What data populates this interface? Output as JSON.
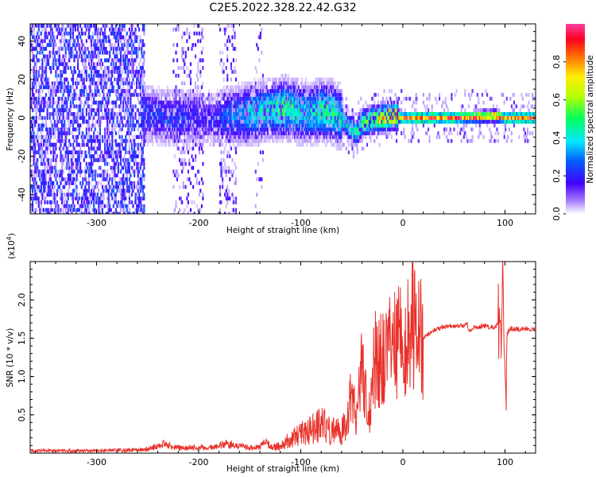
{
  "title": "C2E5.2022.328.22.42.G32",
  "chart_data": [
    {
      "type": "heatmap",
      "title": "C2E5.2022.328.22.42.G32",
      "xlabel": "Height of straight line (km)",
      "ylabel": "Frequency (Hz)",
      "xlim": [
        -365,
        130
      ],
      "ylim": [
        -50,
        49
      ],
      "x_ticks": [
        -300,
        -200,
        -100,
        0,
        100
      ],
      "y_ticks": [
        -40,
        -20,
        0,
        20,
        40
      ],
      "x_tick_labels": [
        "-300",
        "-200",
        "-100",
        "0",
        "100"
      ],
      "y_tick_labels": [
        "-40",
        "-20",
        "0",
        "20",
        "40"
      ],
      "colorbar": {
        "label": "Normalized spectral amplitude",
        "range": [
          0.0,
          1.0
        ],
        "ticks": [
          0.0,
          0.2,
          0.4,
          0.6,
          0.8
        ],
        "tick_labels": [
          "0.0",
          "0.2",
          "0.4",
          "0.6",
          "0.8"
        ]
      },
      "ridge": {
        "x": [
          -255,
          -240,
          -220,
          -200,
          -185,
          -170,
          -150,
          -130,
          -115,
          -100,
          -90,
          -80,
          -70,
          -60,
          -50,
          -45,
          -40,
          -30,
          -20,
          -10,
          -5,
          0,
          20,
          50,
          90,
          100,
          110,
          130
        ],
        "freq": [
          2,
          1,
          0,
          0,
          -1,
          1,
          2,
          4,
          5,
          3,
          2,
          4,
          3,
          0,
          -6,
          -7,
          -3,
          -1,
          0,
          1,
          1,
          0,
          0,
          0,
          1,
          0,
          0,
          0
        ],
        "amplitude": [
          0.25,
          0.25,
          0.25,
          0.2,
          0.2,
          0.3,
          0.4,
          0.45,
          0.55,
          0.45,
          0.4,
          0.5,
          0.5,
          0.45,
          0.45,
          0.5,
          0.55,
          0.65,
          0.75,
          0.8,
          0.85,
          0.95,
          0.95,
          0.95,
          0.9,
          0.85,
          0.95,
          0.95
        ]
      },
      "noise_columns": [
        {
          "x_range": [
            -365,
            -253
          ],
          "level": "dense"
        },
        {
          "x_range": [
            -225,
            -195
          ],
          "level": "sparse"
        },
        {
          "x_range": [
            -180,
            -163
          ],
          "level": "sparse"
        },
        {
          "x_range": [
            -145,
            -136
          ],
          "level": "faint"
        }
      ]
    },
    {
      "type": "line",
      "xlabel": "Height of straight line (km)",
      "ylabel": "SNR (10 * v/v)",
      "y_multiplier": "(x10",
      "y_multiplier_exp": "4",
      "y_multiplier_close": ")",
      "xlim": [
        -365,
        130
      ],
      "ylim": [
        0.0,
        2.5
      ],
      "x_ticks": [
        -300,
        -200,
        -100,
        0,
        100
      ],
      "y_ticks": [
        0.5,
        1.0,
        1.5,
        2.0
      ],
      "x_tick_labels": [
        "-300",
        "-200",
        "-100",
        "0",
        "100"
      ],
      "y_tick_labels": [
        "0.5",
        "1.0",
        "1.5",
        "2.0"
      ],
      "color": "#e8312a",
      "series": [
        {
          "x": [
            -365,
            -330,
            -300,
            -270,
            -250,
            -240,
            -235,
            -230,
            -220,
            -200,
            -185,
            -175,
            -165,
            -150,
            -140,
            -135,
            -130,
            -125,
            -120,
            -110,
            -100,
            -90,
            -80,
            -70,
            -60,
            -55,
            -50,
            -45,
            -40,
            -38,
            -35,
            -32,
            -30,
            -25,
            -20,
            -15,
            -10,
            -5,
            0,
            5,
            10,
            15,
            20,
            30,
            40,
            50,
            60,
            63,
            65,
            70,
            80,
            90,
            95,
            97,
            98,
            99,
            100,
            101,
            102,
            105,
            110,
            120,
            130
          ],
          "y": [
            0.03,
            0.03,
            0.03,
            0.04,
            0.05,
            0.09,
            0.12,
            0.1,
            0.07,
            0.07,
            0.08,
            0.12,
            0.1,
            0.07,
            0.08,
            0.14,
            0.1,
            0.08,
            0.1,
            0.18,
            0.25,
            0.3,
            0.38,
            0.3,
            0.28,
            0.45,
            0.7,
            0.45,
            1.15,
            0.8,
            0.7,
            0.5,
            1.2,
            1.3,
            1.25,
            1.35,
            1.5,
            1.45,
            1.4,
            1.55,
            1.7,
            1.45,
            1.5,
            1.6,
            1.65,
            1.66,
            1.67,
            1.7,
            1.58,
            1.64,
            1.66,
            1.64,
            1.7,
            1.85,
            2.45,
            1.4,
            1.1,
            0.7,
            1.55,
            1.63,
            1.62,
            1.62,
            1.61
          ]
        }
      ]
    }
  ]
}
